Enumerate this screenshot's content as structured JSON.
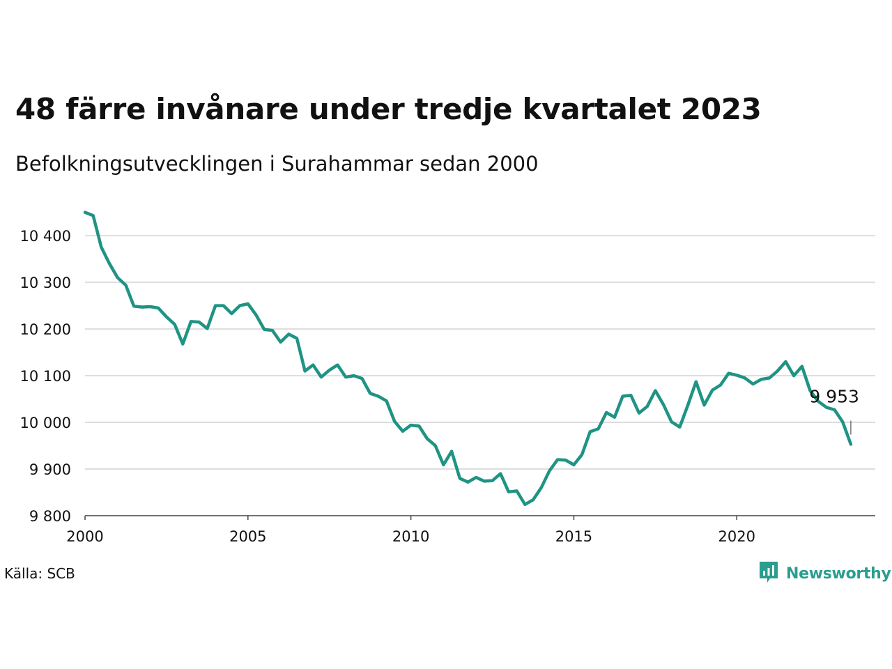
{
  "header": {
    "title": "48 färre invånare under tredje kvartalet 2023",
    "subtitle": "Befolkningsutvecklingen i Surahammar sedan 2000"
  },
  "footer": {
    "source": "Källa: SCB",
    "brand": "Newsworthy",
    "brand_icon": "bar-chart-logo-icon",
    "brand_color": "#2a9d8f"
  },
  "chart_data": {
    "type": "line",
    "title": "48 färre invånare under tredje kvartalet 2023",
    "subtitle": "Befolkningsutvecklingen i Surahammar sedan 2000",
    "xlabel": "",
    "ylabel": "",
    "xlim": [
      2000,
      2024.25
    ],
    "ylim": [
      9800,
      10460
    ],
    "x_ticks": [
      2000,
      2005,
      2010,
      2015,
      2020
    ],
    "x_tick_labels": [
      "2000",
      "2005",
      "2010",
      "2015",
      "2020"
    ],
    "y_ticks": [
      9800,
      9900,
      10000,
      10100,
      10200,
      10300,
      10400
    ],
    "y_tick_labels": [
      "9 800",
      "9 900",
      "10 000",
      "10 100",
      "10 200",
      "10 300",
      "10 400"
    ],
    "grid": "horizontal",
    "line_color": "#1f9384",
    "x_start": 2000,
    "x_step": 0.25,
    "series": [
      {
        "values": [
          10450,
          10443,
          10375,
          10340,
          10310,
          10294,
          10249,
          10247,
          10248,
          10245,
          10226,
          10210,
          10168,
          10216,
          10215,
          10201,
          10250,
          10250,
          10233,
          10250,
          10254,
          10230,
          10199,
          10197,
          10172,
          10189,
          10180,
          10110,
          10123,
          10097,
          10112,
          10123,
          10097,
          10100,
          10094,
          10062,
          10056,
          10046,
          10002,
          9981,
          9994,
          9992,
          9965,
          9950,
          9909,
          9938,
          9880,
          9872,
          9882,
          9874,
          9875,
          9890,
          9851,
          9853,
          9824,
          9834,
          9860,
          9896,
          9920,
          9919,
          9909,
          9931,
          9980,
          9986,
          10021,
          10011,
          10056,
          10058,
          10020,
          10034,
          10068,
          10038,
          10001,
          9990,
          10037,
          10087,
          10037,
          10069,
          10080,
          10105,
          10101,
          10095,
          10082,
          10092,
          10095,
          10110,
          10130,
          10100,
          10120,
          10068,
          10045,
          10032,
          10027,
          10001,
          9953
        ]
      }
    ],
    "annotation": {
      "label": "9 953",
      "x": 2023.5,
      "y": 9953
    }
  }
}
